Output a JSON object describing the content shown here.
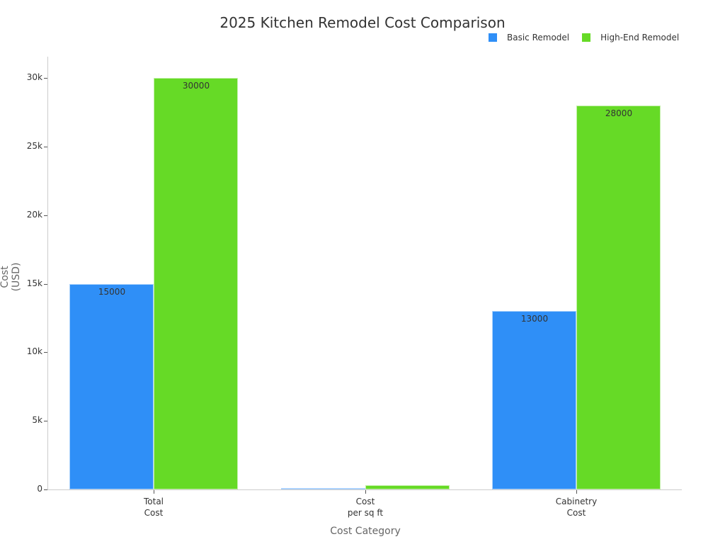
{
  "chart_data": {
    "type": "bar",
    "title": "2025 Kitchen Remodel Cost Comparison",
    "xlabel": "Cost Category",
    "ylabel": "Cost (USD)",
    "categories": [
      "Total Cost",
      "Cost per sq ft",
      "Cabinetry Cost"
    ],
    "category_lines": [
      [
        "Total",
        "Cost"
      ],
      [
        "Cost",
        "per sq ft"
      ],
      [
        "Cabinetry",
        "Cost"
      ]
    ],
    "series": [
      {
        "name": "Basic Remodel",
        "color": "#2f8ff7",
        "values": [
          15000,
          100,
          13000
        ]
      },
      {
        "name": "High-End Remodel",
        "color": "#66da26",
        "values": [
          30000,
          300,
          28000
        ]
      }
    ],
    "ylim": [
      0,
      31500
    ],
    "yticks": [
      0,
      5000,
      10000,
      15000,
      20000,
      25000,
      30000
    ],
    "ytick_labels": [
      "0",
      "5k",
      "10k",
      "15k",
      "20k",
      "25k",
      "30k"
    ],
    "legend_position": "top-right",
    "grid": false
  }
}
